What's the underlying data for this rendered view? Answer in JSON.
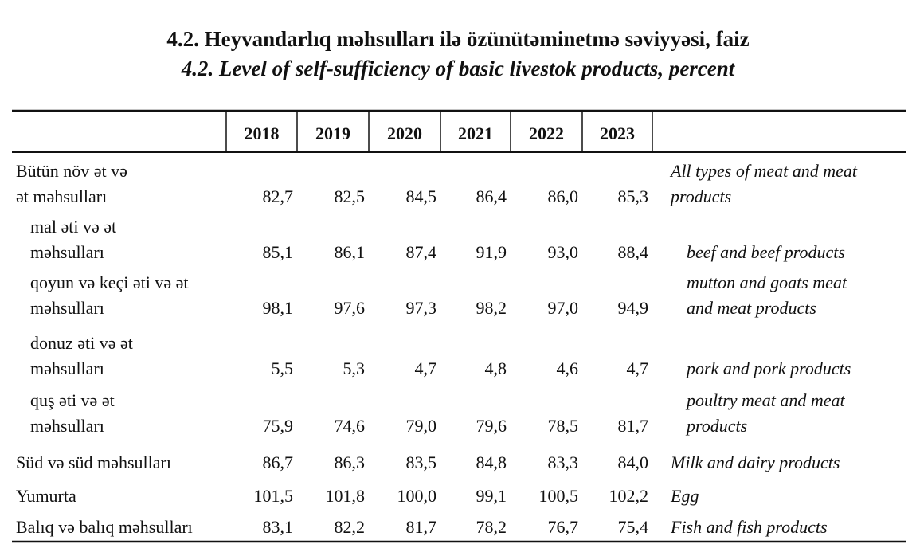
{
  "title_az": "4.2.  Heyvandarlıq məhsulları ilə özünütəminetmə səviyyəsi, faiz",
  "title_en": "4.2. Level of self-sufficiency  of basic livestok products, percent",
  "table": {
    "headers": [
      "2018",
      "2019",
      "2020",
      "2021",
      "2022",
      "2023"
    ],
    "rows": [
      {
        "label_az": [
          "Bütün növ ət və",
          "ət məhsulları"
        ],
        "values": [
          "82,7",
          "82,5",
          "84,5",
          "86,4",
          "86,0",
          "85,3"
        ],
        "label_en": [
          "All types of meat and meat",
          "products"
        ]
      },
      {
        "label_az": [
          "mal əti və ət",
          "məhsulları"
        ],
        "values": [
          "85,1",
          "86,1",
          "87,4",
          "91,9",
          "93,0",
          "88,4"
        ],
        "label_en": [
          "beef and beef products"
        ]
      },
      {
        "label_az": [
          "qoyun və keçi əti və ət",
          "məhsulları"
        ],
        "values": [
          "98,1",
          "97,6",
          "97,3",
          "98,2",
          "97,0",
          "94,9"
        ],
        "label_en": [
          "mutton and goats meat",
          "and meat products"
        ]
      },
      {
        "label_az": [
          "donuz əti və ət",
          "məhsulları"
        ],
        "values": [
          "5,5",
          "5,3",
          "4,7",
          "4,8",
          "4,6",
          "4,7"
        ],
        "label_en": [
          "pork and pork products"
        ]
      },
      {
        "label_az": [
          "quş əti və ət",
          "məhsulları"
        ],
        "values": [
          "75,9",
          "74,6",
          "79,0",
          "79,6",
          "78,5",
          "81,7"
        ],
        "label_en": [
          "poultry meat and meat",
          "products"
        ]
      },
      {
        "label_az": [
          "Süd və süd məhsulları"
        ],
        "values": [
          "86,7",
          "86,3",
          "83,5",
          "84,8",
          "83,3",
          "84,0"
        ],
        "label_en": [
          "Milk and dairy products"
        ]
      },
      {
        "label_az": [
          "Yumurta"
        ],
        "values": [
          "101,5",
          "101,8",
          "100,0",
          "99,1",
          "100,5",
          "102,2"
        ],
        "label_en": [
          "Egg"
        ]
      },
      {
        "label_az": [
          "Balıq və balıq məhsulları"
        ],
        "values": [
          "83,1",
          "82,2",
          "81,7",
          "78,2",
          "76,7",
          "75,4"
        ],
        "label_en": [
          "Fish and fish products"
        ]
      }
    ]
  }
}
